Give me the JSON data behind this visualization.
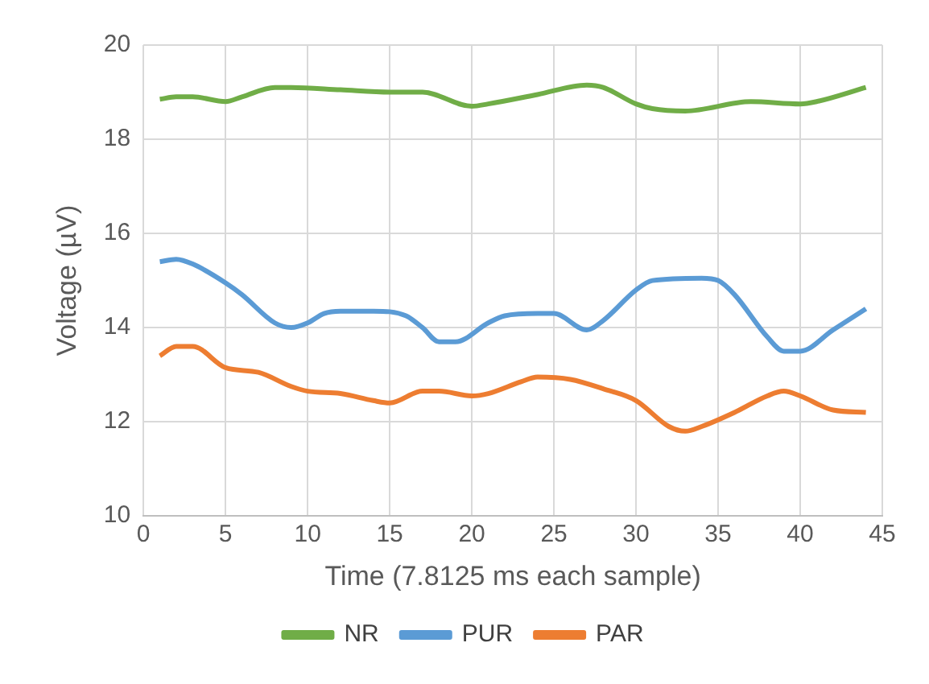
{
  "chart_data": {
    "type": "line",
    "xlabel": "Time (7.8125 ms each sample)",
    "ylabel": "Voltage (µV)",
    "xlim": [
      0,
      45
    ],
    "xticks": [
      0,
      5,
      10,
      15,
      20,
      25,
      30,
      35,
      40,
      45
    ],
    "ylim": [
      10,
      20
    ],
    "yticks": [
      10,
      12,
      14,
      16,
      18,
      20
    ],
    "grid": true,
    "legend": "bottom",
    "marker": "none",
    "line_style": "solid",
    "series": [
      {
        "name": "NR",
        "color": "#70ad47",
        "x": [
          1,
          2,
          3,
          5,
          6,
          8,
          9,
          12,
          15,
          17,
          20,
          21,
          24,
          27,
          28,
          30,
          31,
          33,
          37,
          40,
          41,
          44
        ],
        "values": [
          18.85,
          18.9,
          18.9,
          18.8,
          18.9,
          19.1,
          19.1,
          19.05,
          19.0,
          19.0,
          18.7,
          18.75,
          18.95,
          19.15,
          19.1,
          18.75,
          18.65,
          18.6,
          18.8,
          18.75,
          18.8,
          19.1
        ]
      },
      {
        "name": "PUR",
        "color": "#5b9bd5",
        "x": [
          1,
          2,
          3,
          5,
          6,
          8,
          9,
          10,
          11,
          12,
          14,
          16,
          17,
          18,
          19,
          21,
          22,
          24,
          25,
          27,
          28,
          30,
          31,
          34,
          35,
          36,
          38,
          39,
          40,
          42,
          44
        ],
        "values": [
          15.4,
          15.45,
          15.35,
          14.95,
          14.7,
          14.1,
          14.0,
          14.1,
          14.3,
          14.35,
          14.35,
          14.25,
          14.0,
          13.7,
          13.7,
          14.1,
          14.25,
          14.3,
          14.3,
          13.95,
          14.15,
          14.8,
          15.0,
          15.05,
          15.0,
          14.7,
          13.8,
          13.5,
          13.5,
          13.95,
          14.4
        ]
      },
      {
        "name": "PAR",
        "color": "#ed7d31",
        "x": [
          1,
          2,
          3,
          5,
          7,
          9,
          10,
          12,
          14,
          15,
          17,
          18,
          20,
          21,
          23,
          24,
          26,
          28,
          30,
          32,
          33,
          34,
          36,
          38,
          39,
          40,
          42,
          44
        ],
        "values": [
          13.4,
          13.6,
          13.6,
          13.15,
          13.05,
          12.75,
          12.65,
          12.6,
          12.45,
          12.4,
          12.65,
          12.65,
          12.55,
          12.6,
          12.85,
          12.95,
          12.9,
          12.7,
          12.45,
          11.9,
          11.8,
          11.9,
          12.2,
          12.55,
          12.65,
          12.55,
          12.25,
          12.2
        ]
      }
    ]
  }
}
